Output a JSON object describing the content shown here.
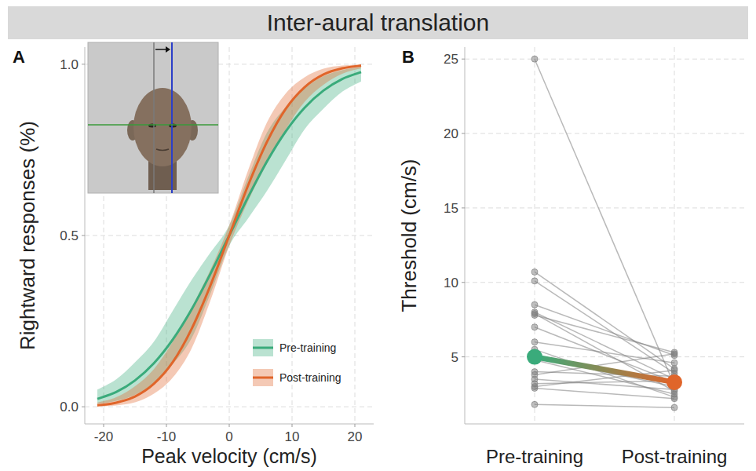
{
  "title": "Inter-aural translation",
  "chart_data": [
    {
      "type": "line",
      "panel": "A",
      "x_label": "Peak velocity (cm/s)",
      "y_label": "Rightward responses (%)",
      "xlim": [
        -23,
        23
      ],
      "ylim": [
        -0.05,
        1.05
      ],
      "xticks": [
        -20,
        -10,
        0,
        10,
        20
      ],
      "yticks": [
        {
          "value": 0,
          "label": "0.0"
        },
        {
          "value": 0.5,
          "label": "0.5"
        },
        {
          "value": 1,
          "label": "1.0"
        }
      ],
      "grid": true,
      "legend": "bottom-right",
      "x": [
        -21,
        -18,
        -15,
        -12,
        -9,
        -6,
        -3,
        0,
        3,
        6,
        9,
        12,
        15,
        18,
        21
      ],
      "series": [
        {
          "name": "Pre-training",
          "color": "#3aab7b",
          "values": [
            0.023,
            0.043,
            0.077,
            0.127,
            0.196,
            0.284,
            0.388,
            0.5,
            0.612,
            0.716,
            0.804,
            0.873,
            0.923,
            0.957,
            0.977
          ],
          "lower": [
            0.008,
            0.017,
            0.035,
            0.07,
            0.125,
            0.2,
            0.33,
            0.47,
            0.55,
            0.63,
            0.72,
            0.81,
            0.87,
            0.92,
            0.95
          ],
          "upper": [
            0.05,
            0.08,
            0.13,
            0.19,
            0.28,
            0.37,
            0.45,
            0.53,
            0.67,
            0.8,
            0.875,
            0.93,
            0.965,
            0.983,
            0.992
          ]
        },
        {
          "name": "Post-training",
          "color": "#e0652a",
          "values": [
            0.004,
            0.012,
            0.03,
            0.067,
            0.13,
            0.227,
            0.354,
            0.5,
            0.646,
            0.773,
            0.87,
            0.933,
            0.97,
            0.988,
            0.996
          ],
          "lower": [
            0.001,
            0.004,
            0.013,
            0.038,
            0.085,
            0.17,
            0.31,
            0.47,
            0.6,
            0.71,
            0.81,
            0.89,
            0.94,
            0.972,
            0.988
          ],
          "upper": [
            0.012,
            0.028,
            0.06,
            0.11,
            0.19,
            0.29,
            0.4,
            0.53,
            0.69,
            0.83,
            0.915,
            0.962,
            0.987,
            0.996,
            0.999
          ]
        }
      ]
    },
    {
      "type": "line",
      "panel": "B",
      "y_label": "Threshold (cm/s)",
      "categories": [
        "Pre-training",
        "Post-training"
      ],
      "ylim": [
        0.5,
        25.8
      ],
      "yticks": [
        5,
        10,
        15,
        20,
        25
      ],
      "grid": true,
      "series": [
        {
          "color": "#808080",
          "marker": "circle",
          "values": [
            25,
            3.1
          ]
        },
        {
          "color": "#808080",
          "marker": "circle",
          "values": [
            10.7,
            4.2
          ]
        },
        {
          "color": "#808080",
          "marker": "circle",
          "values": [
            10.1,
            3.9
          ]
        },
        {
          "color": "#808080",
          "marker": "circle",
          "values": [
            8.5,
            5.1
          ]
        },
        {
          "color": "#808080",
          "marker": "circle",
          "values": [
            8.0,
            3.5
          ]
        },
        {
          "color": "#808080",
          "marker": "circle",
          "values": [
            7.9,
            2.7
          ]
        },
        {
          "color": "#808080",
          "marker": "circle",
          "values": [
            7.8,
            5.3
          ]
        },
        {
          "color": "#808080",
          "marker": "circle",
          "values": [
            7.0,
            3.3
          ]
        },
        {
          "color": "#808080",
          "marker": "circle",
          "values": [
            6.0,
            4.6
          ]
        },
        {
          "color": "#808080",
          "marker": "circle",
          "values": [
            5.5,
            2.3
          ]
        },
        {
          "color": "#808080",
          "marker": "circle",
          "values": [
            5.0,
            3.0
          ]
        },
        {
          "color": "#808080",
          "marker": "circle",
          "values": [
            4.8,
            2.5
          ]
        },
        {
          "color": "#808080",
          "marker": "circle",
          "values": [
            4.0,
            3.7
          ]
        },
        {
          "color": "#808080",
          "marker": "circle",
          "values": [
            3.8,
            5.2
          ]
        },
        {
          "color": "#808080",
          "marker": "circle",
          "values": [
            3.5,
            2.8
          ]
        },
        {
          "color": "#808080",
          "marker": "circle",
          "values": [
            3.2,
            3.4
          ]
        },
        {
          "color": "#808080",
          "marker": "circle",
          "values": [
            3.0,
            4.1
          ]
        },
        {
          "color": "#808080",
          "marker": "circle",
          "values": [
            2.9,
            2.2
          ]
        },
        {
          "color": "#808080",
          "marker": "circle",
          "values": [
            1.8,
            1.6
          ]
        },
        {
          "colors": [
            "#3aab7b",
            "#e0652a"
          ],
          "marker": "circle",
          "values": [
            5.0,
            3.3
          ]
        }
      ]
    }
  ]
}
